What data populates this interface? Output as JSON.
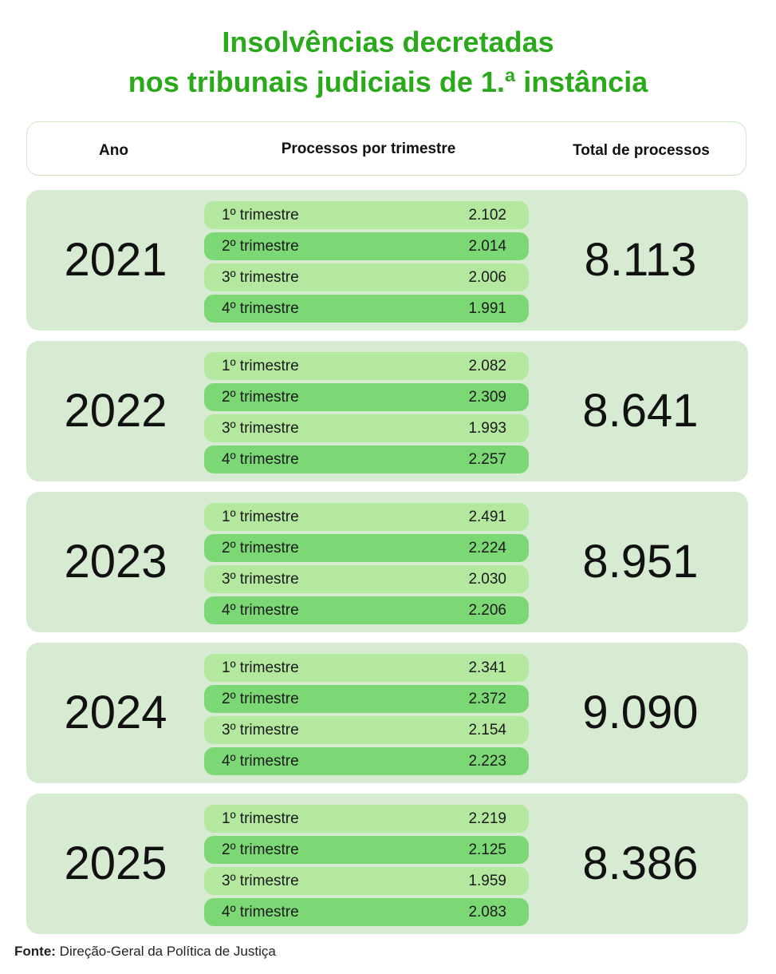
{
  "title": {
    "line1": "Insolvências decretadas",
    "line2": "nos tribunais judiciais de 1.ª instância"
  },
  "header": {
    "ano": "Ano",
    "processos": "Processos por trimestre",
    "total": "Total de processos"
  },
  "years": [
    {
      "year": "2021",
      "total": "8.113",
      "quarters": [
        {
          "label": "1º trimestre",
          "value": "2.102"
        },
        {
          "label": "2º trimestre",
          "value": "2.014"
        },
        {
          "label": "3º trimestre",
          "value": "2.006"
        },
        {
          "label": "4º trimestre",
          "value": "1.991"
        }
      ]
    },
    {
      "year": "2022",
      "total": "8.641",
      "quarters": [
        {
          "label": "1º trimestre",
          "value": "2.082"
        },
        {
          "label": "2º trimestre",
          "value": "2.309"
        },
        {
          "label": "3º trimestre",
          "value": "1.993"
        },
        {
          "label": "4º trimestre",
          "value": "2.257"
        }
      ]
    },
    {
      "year": "2023",
      "total": "8.951",
      "quarters": [
        {
          "label": "1º trimestre",
          "value": "2.491"
        },
        {
          "label": "2º trimestre",
          "value": "2.224"
        },
        {
          "label": "3º trimestre",
          "value": "2.030"
        },
        {
          "label": "4º trimestre",
          "value": "2.206"
        }
      ]
    },
    {
      "year": "2024",
      "total": "9.090",
      "quarters": [
        {
          "label": "1º trimestre",
          "value": "2.341"
        },
        {
          "label": "2º trimestre",
          "value": "2.372"
        },
        {
          "label": "3º trimestre",
          "value": "2.154"
        },
        {
          "label": "4º trimestre",
          "value": "2.223"
        }
      ]
    },
    {
      "year": "2025",
      "total": "8.386",
      "quarters": [
        {
          "label": "1º trimestre",
          "value": "2.219"
        },
        {
          "label": "2º trimestre",
          "value": "2.125"
        },
        {
          "label": "3º trimestre",
          "value": "1.959"
        },
        {
          "label": "4º trimestre",
          "value": "2.083"
        }
      ]
    }
  ],
  "source": {
    "label": "Fonte:",
    "text": " Direção-Geral da Política de Justiça"
  },
  "colors": {
    "title": "#2aaa1a",
    "row_bg": "#d6ebd2",
    "quarter_light": "#b3e89e",
    "quarter_dark": "#7bd874"
  }
}
